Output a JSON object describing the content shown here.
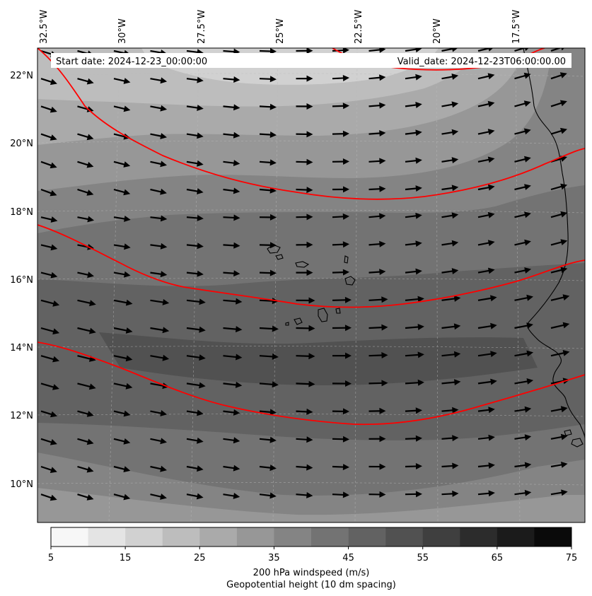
{
  "map": {
    "start_date_text": "Start date: 2024-12-23_00:00:00",
    "valid_date_text": "Valid_date: 2024-12-23T06:00:00.00",
    "lon_labels": [
      "32.5°W",
      "30°W",
      "27.5°W",
      "25°W",
      "22.5°W",
      "20°W",
      "17.5°W"
    ],
    "lat_labels": [
      "22°N",
      "20°N",
      "18°N",
      "16°N",
      "14°N",
      "12°N",
      "10°N"
    ],
    "colors": {
      "height_contour": "#ff0000",
      "wind_arrow": "#000000",
      "coastline": "#000000"
    }
  },
  "colorbar": {
    "ticks": [
      "5",
      "15",
      "25",
      "35",
      "45",
      "55",
      "65",
      "75"
    ],
    "label": "200 hPa windspeed (m/s)",
    "sublabel": "Geopotential height (10 dm spacing)",
    "levels": [
      5,
      10,
      15,
      20,
      25,
      30,
      35,
      40,
      45,
      50,
      55,
      60,
      65,
      70,
      75
    ],
    "colors": [
      "#f7f7f7",
      "#e4e4e4",
      "#d1d1d1",
      "#bdbdbd",
      "#aaaaaa",
      "#979797",
      "#848484",
      "#737373",
      "#626262",
      "#515151",
      "#3f3f3f",
      "#2c2c2c",
      "#1b1b1b",
      "#0a0a0a"
    ]
  }
}
